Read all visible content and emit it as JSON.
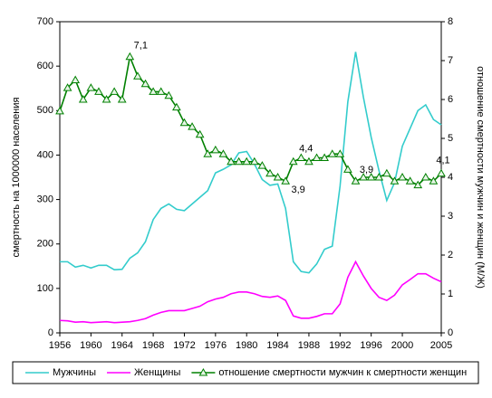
{
  "chart_data": {
    "type": "line",
    "y_label": "смертность на 1000000 населения",
    "y2_label": "отношение смертности мужчин и женщин (М/Ж)",
    "x": [
      1956,
      1957,
      1958,
      1959,
      1960,
      1961,
      1962,
      1963,
      1964,
      1965,
      1966,
      1967,
      1968,
      1969,
      1970,
      1971,
      1972,
      1973,
      1974,
      1975,
      1976,
      1977,
      1978,
      1979,
      1980,
      1981,
      1982,
      1983,
      1984,
      1985,
      1986,
      1987,
      1988,
      1989,
      1990,
      1991,
      1992,
      1993,
      1994,
      1995,
      1996,
      1997,
      1998,
      1999,
      2000,
      2001,
      2002,
      2003,
      2004,
      2005
    ],
    "xlim": [
      1956,
      2005
    ],
    "xticks": [
      1956,
      1960,
      1964,
      1968,
      1972,
      1976,
      1980,
      1984,
      1988,
      1992,
      1996,
      2000,
      2005
    ],
    "ylim": [
      0,
      700
    ],
    "yticks": [
      0,
      100,
      200,
      300,
      400,
      500,
      600,
      700
    ],
    "y2lim": [
      0,
      8
    ],
    "y2ticks": [
      0,
      1,
      2,
      3,
      4,
      5,
      6,
      7,
      8
    ],
    "legend": "bottom",
    "series": [
      {
        "name": "Мужчины",
        "color": "#33cccc",
        "values": [
          160,
          160,
          148,
          152,
          146,
          152,
          152,
          142,
          143,
          168,
          180,
          205,
          255,
          280,
          290,
          278,
          275,
          290,
          305,
          320,
          360,
          368,
          378,
          405,
          408,
          380,
          345,
          332,
          335,
          280,
          160,
          138,
          135,
          155,
          188,
          195,
          330,
          520,
          632,
          530,
          440,
          365,
          298,
          338,
          420,
          460,
          500,
          513,
          480,
          468
        ]
      },
      {
        "name": "Женщины",
        "color": "#ff00ff",
        "values": [
          28,
          27,
          24,
          25,
          23,
          24,
          25,
          23,
          24,
          25,
          28,
          32,
          40,
          46,
          50,
          50,
          50,
          55,
          60,
          70,
          76,
          80,
          88,
          92,
          92,
          88,
          82,
          80,
          83,
          73,
          38,
          33,
          33,
          37,
          43,
          43,
          65,
          125,
          160,
          128,
          100,
          80,
          73,
          85,
          108,
          120,
          133,
          133,
          123,
          115
        ]
      },
      {
        "name": "отношение смертности мужчин к смертности женщин",
        "color": "#008000",
        "axis": "y2",
        "marker": "triangle",
        "values": [
          5.7,
          6.3,
          6.5,
          6.0,
          6.3,
          6.2,
          6.0,
          6.2,
          6.0,
          7.1,
          6.6,
          6.4,
          6.2,
          6.2,
          6.1,
          5.8,
          5.4,
          5.3,
          5.1,
          4.6,
          4.7,
          4.6,
          4.4,
          4.4,
          4.4,
          4.4,
          4.3,
          4.1,
          4.0,
          3.9,
          4.4,
          4.5,
          4.4,
          4.5,
          4.5,
          4.6,
          4.6,
          4.2,
          3.9,
          4.0,
          4.0,
          4.0,
          4.1,
          3.9,
          4.0,
          3.9,
          3.8,
          4.0,
          3.9,
          4.1
        ],
        "value_labels": [
          null,
          null,
          null,
          null,
          null,
          null,
          null,
          null,
          null,
          "7,1",
          null,
          null,
          null,
          null,
          null,
          null,
          null,
          null,
          null,
          null,
          null,
          null,
          null,
          null,
          null,
          null,
          null,
          null,
          null,
          "3,9",
          "4,4",
          null,
          null,
          null,
          null,
          null,
          null,
          null,
          "3,9",
          null,
          null,
          null,
          null,
          null,
          null,
          null,
          null,
          null,
          null,
          "4,1"
        ]
      }
    ]
  }
}
